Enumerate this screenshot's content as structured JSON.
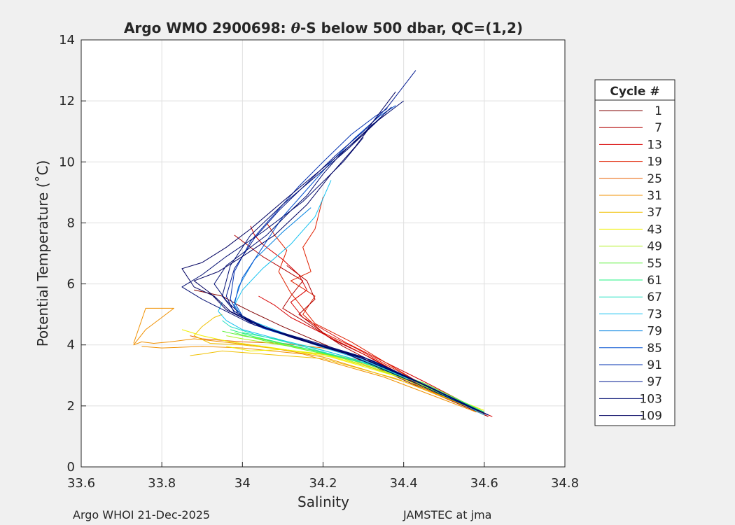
{
  "footer": {
    "left": "Argo WHOI 21-Dec-2025",
    "right": "JAMSTEC at jma"
  },
  "chart_data": {
    "type": "line",
    "title_prefix": "Argo WMO 2900698: ",
    "title_theta": "θ",
    "title_suffix": "-S below 500 dbar,  QC=(1,2)",
    "xlabel": "Salinity",
    "ylabel": "Potential Temperature (˚C)",
    "xlim": [
      33.6,
      34.8
    ],
    "ylim": [
      0,
      14
    ],
    "xticks": [
      33.6,
      33.8,
      34.0,
      34.2,
      34.4,
      34.6,
      34.8
    ],
    "xtick_labels": [
      "33.6",
      "33.8",
      "34",
      "34.2",
      "34.4",
      "34.6",
      "34.8"
    ],
    "yticks": [
      0,
      2,
      4,
      6,
      8,
      10,
      12,
      14
    ],
    "ytick_labels": [
      "0",
      "2",
      "4",
      "6",
      "8",
      "10",
      "12",
      "14"
    ],
    "grid": true,
    "legend_title": "Cycle #",
    "legend_placement": "outside-right",
    "legend": [
      {
        "name": "1",
        "color": "#800000"
      },
      {
        "name": "7",
        "color": "#b00000"
      },
      {
        "name": "13",
        "color": "#d80000"
      },
      {
        "name": "19",
        "color": "#e02000"
      },
      {
        "name": "25",
        "color": "#e86000"
      },
      {
        "name": "31",
        "color": "#f09000"
      },
      {
        "name": "37",
        "color": "#f0c000"
      },
      {
        "name": "43",
        "color": "#f0f000"
      },
      {
        "name": "49",
        "color": "#b0f020"
      },
      {
        "name": "55",
        "color": "#60f040"
      },
      {
        "name": "61",
        "color": "#20f080"
      },
      {
        "name": "67",
        "color": "#20e0c0"
      },
      {
        "name": "73",
        "color": "#10c0f0"
      },
      {
        "name": "79",
        "color": "#0080e0"
      },
      {
        "name": "85",
        "color": "#0050d0"
      },
      {
        "name": "91",
        "color": "#0030b0"
      },
      {
        "name": "97",
        "color": "#001890"
      },
      {
        "name": "103",
        "color": "#000c70"
      },
      {
        "name": "109",
        "color": "#000060"
      }
    ],
    "series": [
      {
        "color": "#800000",
        "x": [
          34.61,
          34.45,
          34.25,
          34.1,
          34.02,
          33.99,
          33.95,
          33.88
        ],
        "y": [
          1.65,
          2.55,
          3.75,
          4.6,
          5.1,
          5.3,
          5.6,
          5.8
        ]
      },
      {
        "color": "#b00000",
        "x": [
          34.61,
          34.43,
          34.25,
          34.15,
          34.1,
          34.12,
          34.15,
          34.1,
          34.05,
          34.01,
          33.98
        ],
        "y": [
          1.7,
          2.7,
          3.95,
          4.8,
          5.2,
          5.6,
          6.1,
          6.5,
          6.9,
          7.3,
          7.6
        ]
      },
      {
        "color": "#d80000",
        "x": [
          34.61,
          34.45,
          34.26,
          34.15,
          34.12,
          34.16,
          34.14,
          34.1,
          34.05,
          34.03,
          34.02
        ],
        "y": [
          1.7,
          2.8,
          4.05,
          4.9,
          5.4,
          5.8,
          6.3,
          6.8,
          7.3,
          7.6,
          7.9
        ]
      },
      {
        "color": "#e02000",
        "x": [
          34.61,
          34.44,
          34.27,
          34.18,
          34.15,
          34.12,
          34.09,
          34.11,
          34.08,
          34.06
        ],
        "y": [
          1.7,
          2.75,
          4.1,
          4.7,
          5.2,
          5.7,
          6.4,
          7.1,
          7.6,
          8.0
        ]
      },
      {
        "color": "#e02000",
        "x": [
          34.6,
          34.42,
          34.28,
          34.2,
          34.15,
          34.18,
          34.12,
          34.17,
          34.15,
          34.18,
          34.2
        ],
        "y": [
          1.7,
          2.9,
          3.9,
          4.4,
          5.0,
          5.6,
          6.1,
          6.4,
          7.2,
          7.8,
          8.85
        ]
      },
      {
        "color": "#b00000",
        "x": [
          34.61,
          34.45,
          34.3,
          34.22,
          34.18,
          34.14,
          34.18,
          34.16,
          34.11
        ],
        "y": [
          1.65,
          2.6,
          3.7,
          4.2,
          4.6,
          5.0,
          5.5,
          6.1,
          6.6
        ]
      },
      {
        "color": "#d80000",
        "x": [
          34.62,
          34.48,
          34.33,
          34.24,
          34.18,
          34.12,
          34.08,
          34.04
        ],
        "y": [
          1.65,
          2.4,
          3.5,
          4.1,
          4.5,
          4.9,
          5.3,
          5.6
        ]
      },
      {
        "color": "#e86000",
        "x": [
          34.6,
          34.42,
          34.28,
          34.2,
          34.1,
          34.0,
          33.95,
          33.9,
          33.87
        ],
        "y": [
          1.8,
          2.85,
          3.65,
          3.9,
          4.05,
          4.1,
          4.15,
          4.2,
          4.3
        ]
      },
      {
        "color": "#f09000",
        "x": [
          34.6,
          34.4,
          34.2,
          34.05,
          33.95,
          33.88,
          33.82,
          33.78,
          33.75,
          33.73,
          33.76,
          33.8,
          33.83,
          33.76,
          33.73
        ],
        "y": [
          1.75,
          2.8,
          3.6,
          3.95,
          4.1,
          4.2,
          4.1,
          4.05,
          4.1,
          4.0,
          4.5,
          4.9,
          5.2,
          5.2,
          4.05
        ]
      },
      {
        "color": "#f09000",
        "x": [
          34.58,
          34.35,
          34.15,
          34.0,
          33.9,
          33.8,
          33.75
        ],
        "y": [
          1.8,
          2.95,
          3.7,
          3.9,
          3.95,
          3.9,
          3.95
        ]
      },
      {
        "color": "#f0c000",
        "x": [
          34.6,
          34.42,
          34.25,
          34.1,
          34.0,
          33.92,
          33.88,
          33.9,
          33.93,
          33.95
        ],
        "y": [
          1.8,
          2.8,
          3.6,
          3.85,
          4.0,
          4.05,
          4.3,
          4.6,
          4.9,
          5.0
        ]
      },
      {
        "color": "#f0c000",
        "x": [
          34.58,
          34.38,
          34.2,
          34.05,
          33.95,
          33.9,
          33.87
        ],
        "y": [
          1.9,
          2.9,
          3.55,
          3.7,
          3.8,
          3.7,
          3.65
        ]
      },
      {
        "color": "#f0f000",
        "x": [
          34.6,
          34.4,
          34.22,
          34.08,
          33.97,
          33.9,
          33.85
        ],
        "y": [
          1.85,
          2.9,
          3.6,
          3.9,
          4.1,
          4.3,
          4.5
        ]
      },
      {
        "color": "#f0f000",
        "x": [
          34.56,
          34.36,
          34.2,
          34.1,
          34.02,
          33.96
        ],
        "y": [
          2.0,
          3.1,
          3.7,
          3.85,
          3.8,
          3.95
        ]
      },
      {
        "color": "#b0f020",
        "x": [
          34.6,
          34.45,
          34.3,
          34.17,
          34.07,
          34.0,
          33.96
        ],
        "y": [
          1.8,
          2.75,
          3.45,
          3.85,
          4.05,
          4.2,
          4.3
        ]
      },
      {
        "color": "#b0f020",
        "x": [
          34.58,
          34.4,
          34.25,
          34.12,
          34.05,
          34.0
        ],
        "y": [
          1.9,
          2.9,
          3.55,
          3.95,
          4.2,
          4.3
        ]
      },
      {
        "color": "#60f040",
        "x": [
          34.6,
          34.45,
          34.3,
          34.18,
          34.08,
          34.0,
          33.95
        ],
        "y": [
          1.8,
          2.75,
          3.4,
          3.8,
          4.1,
          4.3,
          4.45
        ]
      },
      {
        "color": "#60f040",
        "x": [
          34.58,
          34.42,
          34.28,
          34.15,
          34.05,
          33.98
        ],
        "y": [
          1.85,
          2.85,
          3.5,
          3.85,
          4.15,
          4.4
        ]
      },
      {
        "color": "#20f080",
        "x": [
          34.6,
          34.45,
          34.32,
          34.2,
          34.1,
          34.02,
          33.97
        ],
        "y": [
          1.8,
          2.7,
          3.35,
          3.75,
          4.05,
          4.3,
          4.5
        ]
      },
      {
        "color": "#20f080",
        "x": [
          34.58,
          34.42,
          34.3,
          34.18,
          34.08,
          34.0
        ],
        "y": [
          1.85,
          2.8,
          3.45,
          3.9,
          4.2,
          4.4
        ]
      },
      {
        "color": "#20e0c0",
        "x": [
          34.6,
          34.45,
          34.33,
          34.22,
          34.12,
          34.03,
          33.97,
          33.95
        ],
        "y": [
          1.75,
          2.7,
          3.3,
          3.7,
          4.05,
          4.35,
          4.6,
          4.8
        ]
      },
      {
        "color": "#10c0f0",
        "x": [
          34.6,
          34.46,
          34.34,
          34.22,
          34.1,
          34.0,
          33.96,
          33.94,
          33.95
        ],
        "y": [
          1.75,
          2.65,
          3.3,
          3.75,
          4.15,
          4.5,
          4.8,
          5.1,
          5.4
        ]
      },
      {
        "color": "#10c0f0",
        "x": [
          34.6,
          34.45,
          34.3,
          34.18,
          34.08,
          34.0,
          33.98,
          34.0,
          34.05,
          34.12,
          34.18,
          34.22
        ],
        "y": [
          1.7,
          2.7,
          3.5,
          4.0,
          4.5,
          4.9,
          5.3,
          5.8,
          6.5,
          7.3,
          8.2,
          9.4
        ]
      },
      {
        "color": "#0080e0",
        "x": [
          34.61,
          34.46,
          34.32,
          34.2,
          34.08,
          34.0,
          33.98,
          33.99,
          34.03,
          34.1,
          34.17
        ],
        "y": [
          1.7,
          2.65,
          3.45,
          3.95,
          4.45,
          4.9,
          5.3,
          5.9,
          6.8,
          7.7,
          8.5
        ]
      },
      {
        "color": "#0050d0",
        "x": [
          34.61,
          34.45,
          34.3,
          34.17,
          34.05,
          34.0,
          33.98,
          34.0,
          34.05,
          34.1,
          34.16,
          34.22,
          34.28,
          34.34,
          34.38
        ],
        "y": [
          1.7,
          2.7,
          3.55,
          4.05,
          4.55,
          4.95,
          5.4,
          6.2,
          7.2,
          8.2,
          9.1,
          10.0,
          10.8,
          11.5,
          11.85
        ]
      },
      {
        "color": "#0030b0",
        "x": [
          34.61,
          34.44,
          34.3,
          34.16,
          34.05,
          33.99,
          33.97,
          33.98,
          34.02,
          34.08,
          34.14,
          34.2,
          34.27,
          34.33,
          34.36
        ],
        "y": [
          1.7,
          2.75,
          3.6,
          4.1,
          4.6,
          5.0,
          5.5,
          6.4,
          7.4,
          8.3,
          9.2,
          10.0,
          10.9,
          11.5,
          11.75
        ]
      },
      {
        "color": "#001890",
        "x": [
          34.61,
          34.45,
          34.3,
          34.15,
          34.03,
          33.98,
          33.96,
          33.98,
          34.03,
          34.09,
          34.16,
          34.23,
          34.3,
          34.36,
          34.43
        ],
        "y": [
          1.7,
          2.7,
          3.6,
          4.15,
          4.65,
          5.05,
          5.6,
          6.5,
          7.5,
          8.4,
          9.3,
          10.2,
          11.0,
          11.8,
          13.0
        ]
      },
      {
        "color": "#000c70",
        "x": [
          34.61,
          34.44,
          34.28,
          34.14,
          34.03,
          33.98,
          33.95,
          33.97,
          34.02,
          34.1,
          34.18,
          34.26,
          34.34,
          34.4
        ],
        "y": [
          1.7,
          2.75,
          3.65,
          4.2,
          4.7,
          5.1,
          5.6,
          6.6,
          7.6,
          8.6,
          9.5,
          10.4,
          11.4,
          12.0
        ]
      },
      {
        "color": "#000c70",
        "x": [
          34.6,
          34.44,
          34.3,
          34.15,
          34.02,
          33.96,
          33.9,
          33.85,
          33.9,
          33.96,
          34.05,
          34.15,
          34.25,
          34.3
        ],
        "y": [
          1.75,
          2.75,
          3.6,
          4.2,
          4.7,
          5.1,
          5.5,
          5.9,
          6.3,
          6.9,
          7.7,
          8.7,
          10.0,
          10.8
        ]
      },
      {
        "color": "#000060",
        "x": [
          34.61,
          34.45,
          34.3,
          34.15,
          34.03,
          33.97,
          33.93,
          33.88,
          33.85,
          33.9,
          33.96,
          34.02,
          34.1,
          34.2,
          34.3,
          34.38
        ],
        "y": [
          1.7,
          2.7,
          3.55,
          4.15,
          4.7,
          5.1,
          5.6,
          5.9,
          6.5,
          6.7,
          7.2,
          7.8,
          8.7,
          9.8,
          10.9,
          12.3
        ]
      },
      {
        "color": "#000060",
        "x": [
          34.6,
          34.42,
          34.26,
          34.12,
          34.02,
          33.96,
          33.92,
          33.88,
          33.94,
          34.0,
          34.08,
          34.16,
          34.22,
          34.28,
          34.32,
          34.36
        ],
        "y": [
          1.75,
          2.8,
          3.7,
          4.25,
          4.75,
          5.15,
          5.7,
          6.1,
          6.4,
          6.9,
          7.6,
          8.6,
          9.6,
          10.5,
          11.2,
          11.6
        ]
      },
      {
        "color": "#000c70",
        "x": [
          34.61,
          34.46,
          34.32,
          34.18,
          34.06,
          34.0,
          33.96,
          33.93,
          33.96,
          34.0,
          34.06,
          34.12,
          34.16,
          34.2,
          34.24,
          34.28,
          34.33,
          34.37
        ],
        "y": [
          1.7,
          2.65,
          3.5,
          4.05,
          4.55,
          4.95,
          5.45,
          6.0,
          6.6,
          7.0,
          7.6,
          8.4,
          8.9,
          9.6,
          10.2,
          10.7,
          11.3,
          11.8
        ]
      }
    ]
  }
}
